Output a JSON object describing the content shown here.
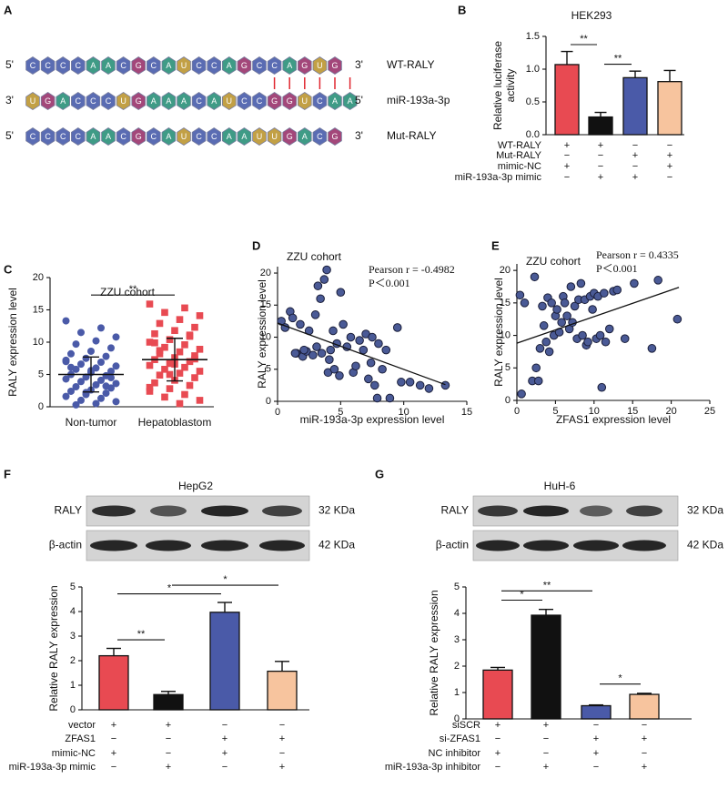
{
  "sequence_panel": {
    "panel": "A",
    "letter_colors": {
      "C": "#5a6cb3",
      "A": "#3f9b86",
      "G": "#a3477a",
      "U": "#c2a045"
    },
    "rows": [
      {
        "left": "5'",
        "letters": [
          "C",
          "C",
          "C",
          "C",
          "A",
          "A",
          "C",
          "G",
          "C",
          "A",
          "U",
          "C",
          "C",
          "A",
          "G",
          "C",
          "C",
          "A",
          "G",
          "U",
          "G"
        ],
        "right": "3'",
        "name": "WT-RALY"
      },
      {
        "left": "3'",
        "letters": [
          "U",
          "G",
          "A",
          "C",
          "C",
          "C",
          "U",
          "G",
          "A",
          "A",
          "A",
          "C",
          "A",
          "U",
          "C",
          "C",
          "G",
          "G",
          "U",
          "C",
          "A",
          "A"
        ],
        "right": "5'",
        "name": "miR-193a-3p"
      },
      {
        "left": "5'",
        "letters": [
          "C",
          "C",
          "C",
          "C",
          "A",
          "A",
          "C",
          "G",
          "C",
          "A",
          "U",
          "C",
          "C",
          "A",
          "A",
          "U",
          "U",
          "G",
          "A",
          "C",
          "G"
        ],
        "right": "3'",
        "name": "Mut-RALY"
      }
    ]
  },
  "chart_data": [
    {
      "type": "bar",
      "panel": "B",
      "title": "HEK293",
      "ylabel": [
        "Relative luciferase",
        "activity"
      ],
      "values": [
        1.07,
        0.27,
        0.87,
        0.81
      ],
      "errors": [
        0.2,
        0.07,
        0.1,
        0.17
      ],
      "colors": [
        "#e84a52",
        "#111111",
        "#4a5aa8",
        "#f7c49e"
      ],
      "ylim": [
        0,
        1.5
      ],
      "yticks": [
        {
          "value": 0,
          "label": "0.0"
        },
        0.5,
        {
          "value": 1,
          "label": "1.0"
        },
        1.5
      ],
      "significance": [
        {
          "label": "**",
          "bars": [
            1,
            2
          ]
        },
        {
          "label": "**",
          "bars": [
            2,
            3
          ]
        }
      ],
      "conditions": [
        {
          "name": "WT-RALY",
          "signs": [
            "+",
            "+",
            "−",
            "−"
          ]
        },
        {
          "name": "Mut-RALY",
          "signs": [
            "−",
            "−",
            "+",
            "+"
          ]
        },
        {
          "name": "mimic-NC",
          "signs": [
            "+",
            "−",
            "−",
            "+"
          ]
        },
        {
          "name": "miR-193a-3p mimic",
          "signs": [
            "−",
            "+",
            "+",
            "−"
          ]
        }
      ]
    },
    {
      "type": "strip",
      "panel": "C",
      "title": "ZZU cohort",
      "ylabel": "RALY expression level",
      "categories": [
        "Non-tumor",
        "Hepatoblastom"
      ],
      "groups": [
        {
          "color": "#4a5aa8",
          "marker": "circle",
          "mean": 5.0,
          "sd": 2.7,
          "values": [
            13.3,
            12.2,
            11.5,
            10.8,
            10.2,
            9.7,
            9.1,
            8.6,
            8.2,
            7.8,
            7.5,
            7.2,
            6.9,
            6.6,
            6.3,
            6.0,
            5.8,
            5.5,
            5.3,
            5.0,
            4.8,
            4.6,
            4.3,
            4.1,
            3.9,
            3.6,
            3.4,
            3.1,
            2.9,
            2.6,
            2.4,
            2.1,
            1.9,
            1.6,
            1.3,
            1.0,
            0.8,
            0.5,
            0.3,
            4.5,
            5.6,
            6.1,
            3.2,
            2.2,
            7.0
          ]
        },
        {
          "color": "#e84a52",
          "marker": "square",
          "mean": 7.3,
          "sd": 3.3,
          "values": [
            15.9,
            15.3,
            14.6,
            14.1,
            13.5,
            12.9,
            12.3,
            11.8,
            11.3,
            10.9,
            10.4,
            10.0,
            9.6,
            9.2,
            8.9,
            8.5,
            8.2,
            7.9,
            7.6,
            7.3,
            7.0,
            6.7,
            6.4,
            6.1,
            5.8,
            5.5,
            5.2,
            4.9,
            4.5,
            4.1,
            3.7,
            3.3,
            2.8,
            2.4,
            1.9,
            1.5,
            1.0,
            0.5,
            8.7,
            7.4,
            6.6,
            9.9,
            11.1,
            5.0,
            3.0
          ]
        }
      ],
      "ylim": [
        0,
        20
      ],
      "yticks": [
        0,
        5,
        10,
        15,
        20
      ],
      "significance": [
        {
          "label": "**",
          "bars": [
            1,
            2
          ]
        }
      ]
    },
    {
      "type": "scatter",
      "panel": "D",
      "title": "ZZU cohort",
      "xlabel": "miR-193a-3p expression level",
      "ylabel": "RALY expression level",
      "annotations": [
        "Pearson r = -0.4982",
        "P＜0.001"
      ],
      "color": "#4a5a96",
      "x": [
        0.3,
        0.6,
        1.0,
        1.2,
        1.5,
        1.8,
        2.0,
        2.3,
        2.5,
        2.8,
        3.0,
        3.2,
        3.4,
        3.5,
        3.7,
        3.9,
        4.0,
        4.2,
        4.4,
        4.5,
        4.7,
        4.9,
        5.0,
        5.2,
        5.5,
        5.8,
        6.0,
        6.2,
        6.5,
        6.8,
        7.0,
        7.2,
        7.4,
        7.5,
        7.7,
        7.9,
        8.0,
        8.3,
        8.6,
        8.9,
        9.5,
        9.8,
        10.5,
        11.3,
        12.0,
        13.3,
        1.4,
        2.1,
        3.1,
        4.1
      ],
      "y": [
        12.5,
        11.5,
        14.0,
        13.0,
        7.5,
        12.0,
        7.0,
        7.8,
        11.0,
        7.2,
        13.5,
        18.0,
        16.0,
        7.5,
        19.0,
        20.5,
        4.5,
        8.0,
        11.0,
        5.0,
        9.0,
        4.0,
        17.0,
        12.0,
        8.5,
        10.0,
        4.5,
        5.5,
        9.5,
        8.0,
        10.5,
        3.5,
        6.0,
        10.0,
        2.5,
        0.5,
        9.0,
        5.0,
        8.0,
        0.5,
        11.5,
        3.0,
        3.0,
        2.5,
        2.0,
        2.5,
        7.5,
        8.0,
        8.5,
        6.5
      ],
      "fit": {
        "x": [
          0,
          13.3
        ],
        "y": [
          12.2,
          2.6
        ]
      },
      "xlim": [
        0,
        15
      ],
      "xticks": [
        0,
        5,
        10,
        15
      ],
      "ylim": [
        0,
        21
      ],
      "yticks": [
        0,
        5,
        10,
        15,
        20
      ]
    },
    {
      "type": "scatter",
      "panel": "E",
      "title": "ZZU cohort",
      "xlabel": "ZFAS1 expression level",
      "ylabel": "RALY expression level",
      "annotations": [
        "Pearson r = 0.4335",
        "P＜0.001"
      ],
      "color": "#4a5a96",
      "x": [
        0.4,
        0.6,
        1.0,
        2.0,
        2.3,
        2.5,
        2.8,
        3.0,
        3.3,
        3.5,
        3.8,
        4.0,
        4.2,
        4.5,
        4.8,
        5.0,
        5.2,
        5.5,
        5.8,
        6.0,
        6.2,
        6.5,
        6.8,
        7.0,
        7.2,
        7.5,
        7.8,
        8.0,
        8.3,
        8.5,
        8.8,
        9.0,
        9.2,
        9.5,
        9.8,
        10.0,
        10.3,
        10.5,
        10.8,
        11.0,
        11.3,
        11.5,
        12.0,
        12.5,
        13.0,
        14.0,
        15.2,
        17.5,
        18.3,
        20.8
      ],
      "y": [
        16.2,
        1.0,
        15.0,
        3.0,
        19.0,
        5.0,
        3.0,
        8.0,
        14.5,
        11.5,
        9.0,
        15.8,
        7.5,
        15.0,
        10.0,
        13.0,
        14.0,
        10.5,
        12.0,
        16.0,
        15.0,
        13.0,
        11.0,
        17.5,
        12.0,
        14.5,
        9.5,
        15.5,
        18.0,
        10.0,
        15.5,
        8.5,
        9.0,
        16.0,
        14.0,
        16.5,
        9.5,
        16.0,
        10.0,
        2.0,
        16.5,
        9.0,
        11.0,
        16.8,
        17.0,
        9.5,
        18.0,
        8.0,
        18.5,
        12.5
      ],
      "fit": {
        "x": [
          0,
          21
        ],
        "y": [
          8.8,
          17.4
        ]
      },
      "xlim": [
        0,
        25
      ],
      "xticks": [
        0,
        5,
        10,
        15,
        20,
        25
      ],
      "ylim": [
        0,
        21
      ],
      "yticks": [
        0,
        5,
        10,
        15,
        20
      ]
    },
    {
      "type": "bar",
      "panel": "F",
      "title": "HepG2",
      "blot": [
        {
          "label": "RALY",
          "size": "32 KDa"
        },
        {
          "label": "β-actin",
          "size": "42 KDa"
        }
      ],
      "ylabel": "Relative RALY expression",
      "values": [
        2.2,
        0.62,
        3.97,
        1.57
      ],
      "errors": [
        0.3,
        0.13,
        0.4,
        0.4
      ],
      "colors": [
        "#e84a52",
        "#111111",
        "#4a5aa8",
        "#f7c49e"
      ],
      "ylim": [
        0,
        5
      ],
      "yticks": [
        0,
        1,
        2,
        3,
        4,
        5
      ],
      "significance": [
        {
          "label": "**",
          "bars": [
            1,
            2
          ]
        },
        {
          "label": "*",
          "bars": [
            1,
            3
          ]
        },
        {
          "label": "*",
          "bars": [
            2,
            4
          ]
        }
      ],
      "conditions": [
        {
          "name": "vector",
          "signs": [
            "+",
            "+",
            "−",
            "−"
          ]
        },
        {
          "name": "ZFAS1",
          "signs": [
            "−",
            "−",
            "+",
            "+"
          ]
        },
        {
          "name": "mimic-NC",
          "signs": [
            "+",
            "−",
            "+",
            "−"
          ]
        },
        {
          "name": "miR-193a-3p mimic",
          "signs": [
            "−",
            "+",
            "−",
            "+"
          ]
        }
      ]
    },
    {
      "type": "bar",
      "panel": "G",
      "title": "HuH-6",
      "blot": [
        {
          "label": "RALY",
          "size": "32 KDa"
        },
        {
          "label": "β-actin",
          "size": "42 KDa"
        }
      ],
      "ylabel": "Relative RALY expression",
      "values": [
        1.85,
        3.93,
        0.5,
        0.93
      ],
      "errors": [
        0.1,
        0.22,
        0.03,
        0.04
      ],
      "colors": [
        "#e84a52",
        "#111111",
        "#4a5aa8",
        "#f7c49e"
      ],
      "ylim": [
        0,
        5
      ],
      "yticks": [
        0,
        1,
        2,
        3,
        4,
        5
      ],
      "significance": [
        {
          "label": "*",
          "bars": [
            1,
            2
          ]
        },
        {
          "label": "**",
          "bars": [
            1,
            3
          ]
        },
        {
          "label": "*",
          "bars": [
            3,
            4
          ]
        }
      ],
      "conditions": [
        {
          "name": "siSCR",
          "signs": [
            "+",
            "+",
            "−",
            "−"
          ]
        },
        {
          "name": "si-ZFAS1",
          "signs": [
            "−",
            "−",
            "+",
            "+"
          ]
        },
        {
          "name": "NC inhibitor",
          "signs": [
            "+",
            "−",
            "+",
            "−"
          ]
        },
        {
          "name": "miR-193a-3p inhibitor",
          "signs": [
            "−",
            "+",
            "−",
            "+"
          ]
        }
      ]
    }
  ]
}
